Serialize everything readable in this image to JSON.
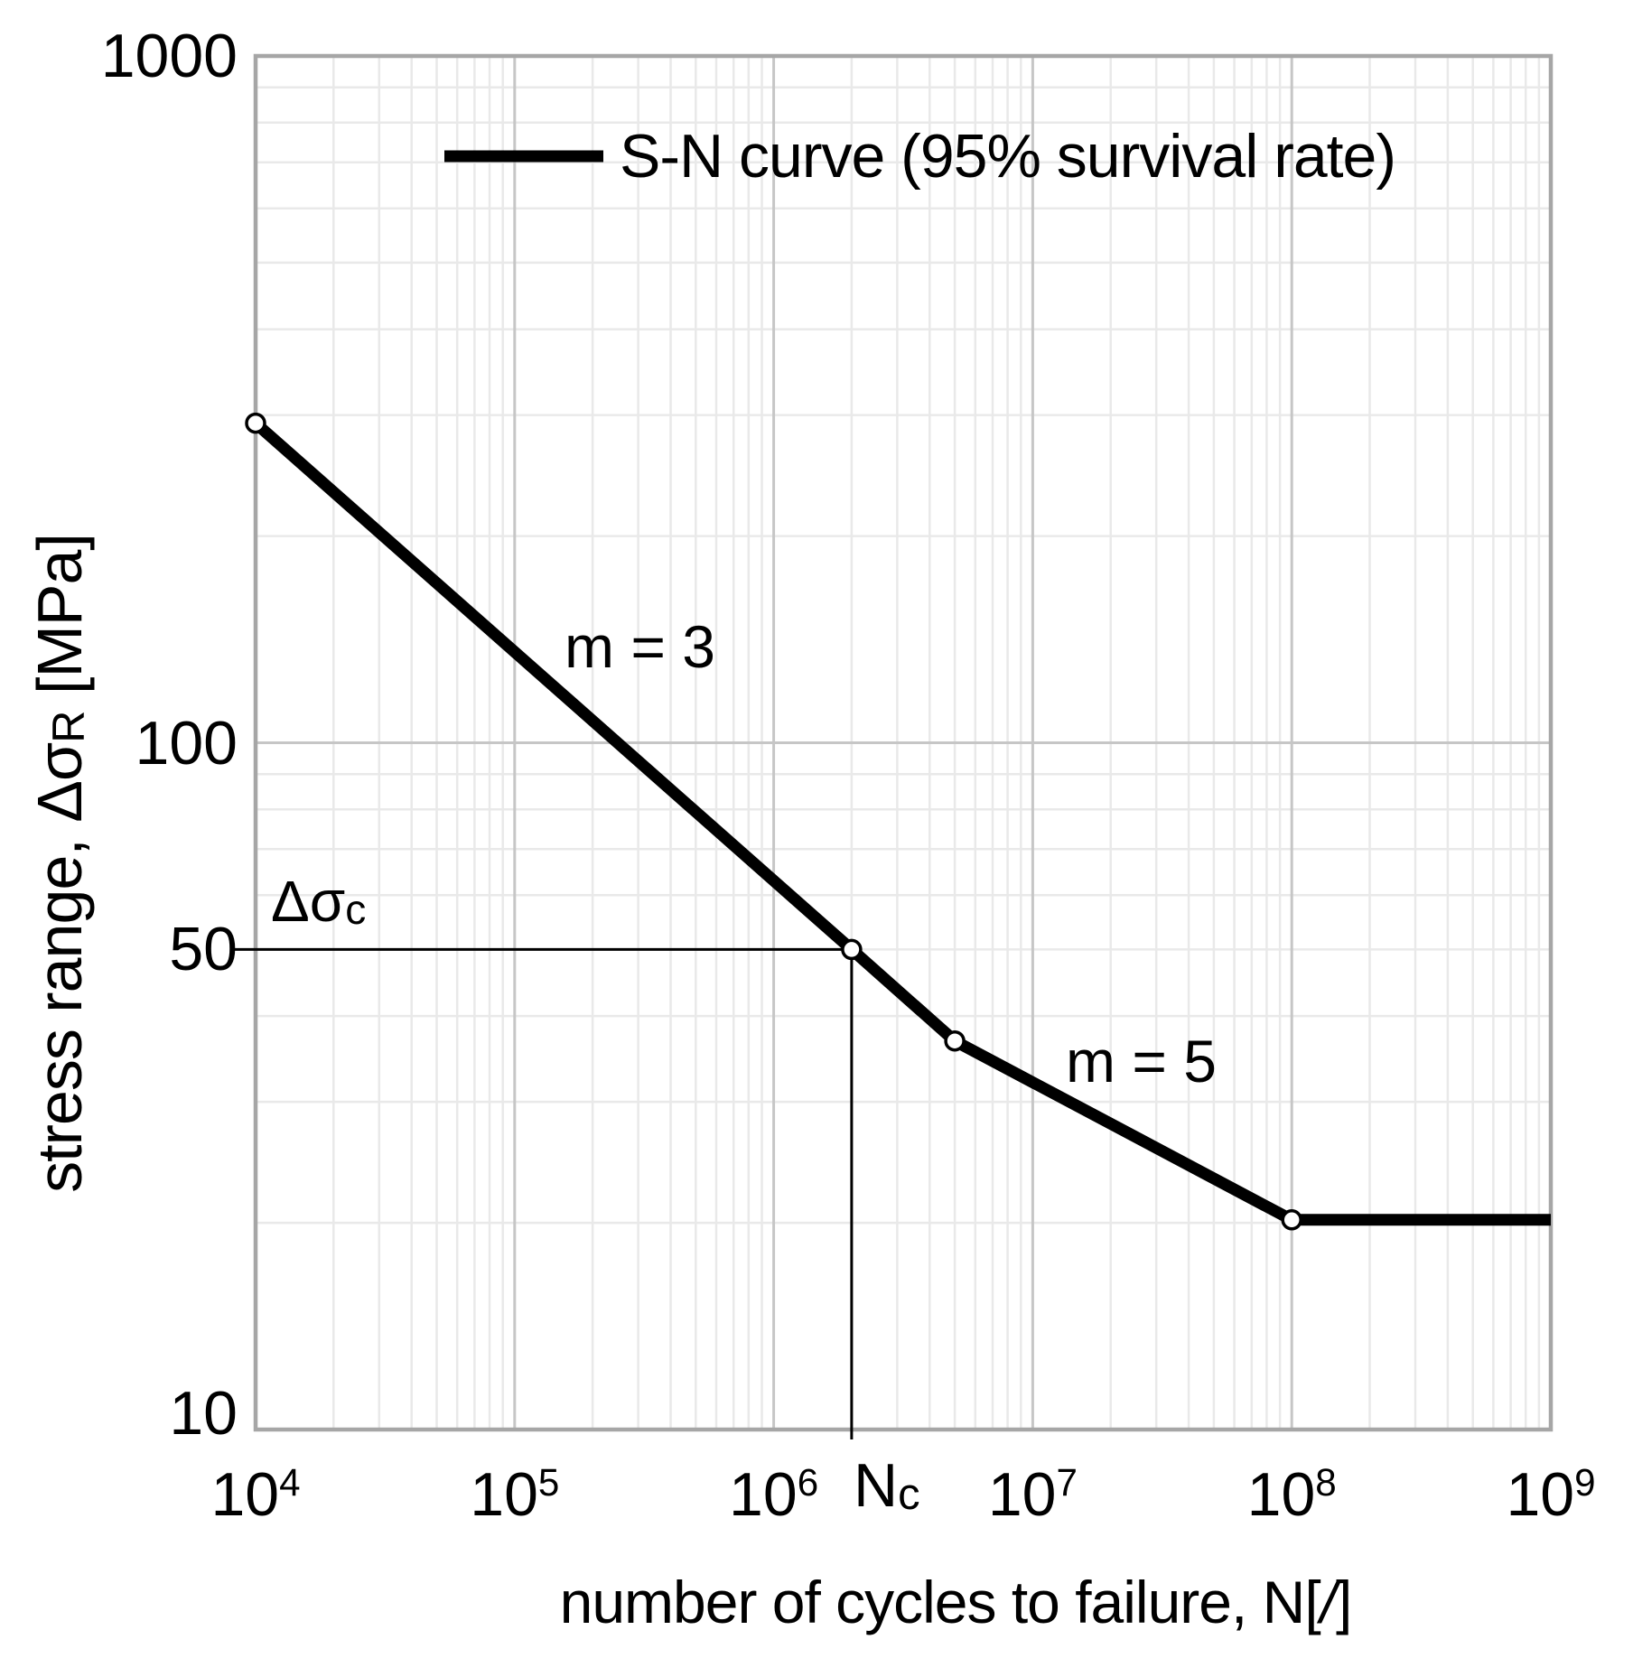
{
  "figure": {
    "legend": {
      "label": "S-N curve (95% survival rate)"
    },
    "y_axis": {
      "title_prefix": "stress range, Δσ",
      "title_sub": "R",
      "title_suffix": " [MPa]",
      "ticks": [
        {
          "label": "1000",
          "value": 1000
        },
        {
          "label": "100",
          "value": 100
        },
        {
          "label": "50",
          "value": 50
        },
        {
          "label": "10",
          "value": 10
        }
      ]
    },
    "x_axis": {
      "title_prefix": "number of cycles to failure, N[",
      "title_italic": "/",
      "title_suffix": "]",
      "ticks": [
        {
          "base": "10",
          "exp": "4",
          "value": 10000
        },
        {
          "base": "10",
          "exp": "5",
          "value": 100000
        },
        {
          "base": "10",
          "exp": "6",
          "value": 1000000
        },
        {
          "base": "10",
          "exp": "7",
          "value": 10000000
        },
        {
          "base": "10",
          "exp": "8",
          "value": 100000000
        },
        {
          "base": "10",
          "exp": "9",
          "value": 1000000000
        }
      ],
      "nc_label": {
        "main": "N",
        "sub": "c"
      }
    },
    "annotations": {
      "m3": "m = 3",
      "m5": "m = 5",
      "dsc_main": "Δσ",
      "dsc_sub": "c"
    }
  },
  "chart_data": {
    "type": "line",
    "title": "",
    "xlabel": "number of cycles to failure, N[/]",
    "ylabel": "stress range, ΔσR [MPa]",
    "x_scale": "log",
    "y_scale": "log",
    "xlim": [
      10000,
      1000000000
    ],
    "ylim": [
      10,
      1000
    ],
    "grid": true,
    "legend_position": "top-inside",
    "series": [
      {
        "name": "S-N curve (95% survival rate)",
        "color": "#000000",
        "points_x": [
          10000,
          2000000,
          5000000,
          100000000,
          1000000000
        ],
        "points_y": [
          292,
          50,
          36.8,
          20.2,
          20.2
        ],
        "marker_x": [
          10000,
          2000000,
          5000000,
          100000000
        ],
        "marker_y": [
          292,
          50,
          36.8,
          20.2
        ]
      }
    ],
    "slope_first_branch_m": 3,
    "slope_second_branch_m": 5,
    "reference": {
      "delta_sigma_c_mpa": 50,
      "n_c_cycles": 2000000,
      "knee_point_stress_mpa": 36.8,
      "knee_point_cycles": 5000000,
      "cutoff_stress_mpa": 20.2,
      "cutoff_cycles": 100000000
    }
  },
  "colors": {
    "curve": "#000000",
    "grid_minor": "#e9e9e9",
    "grid_major": "#c6c6c6",
    "plot_border": "#a6a6a6",
    "reference_line": "#000000",
    "marker_fill": "#ffffff",
    "text": "#000000",
    "background": "#ffffff"
  }
}
